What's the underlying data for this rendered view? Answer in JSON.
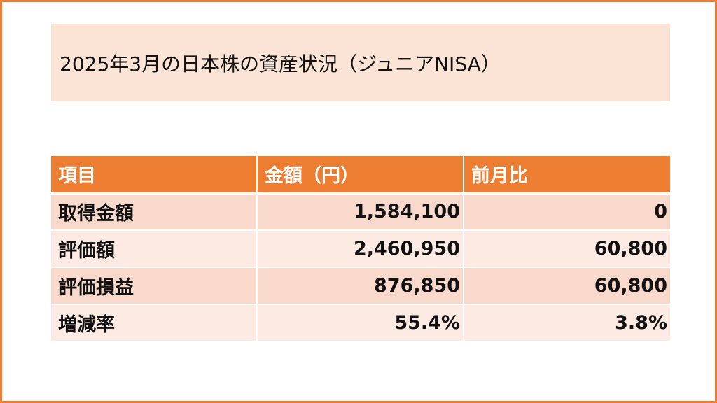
{
  "title": "2025年3月の日本株の資産状況（ジュニアNISA）",
  "table": {
    "headers": [
      "項目",
      "金額（円）",
      "前月比"
    ],
    "rows": [
      [
        "取得金額",
        "1,584,100",
        "0"
      ],
      [
        "評価額",
        "2,460,950",
        "60,800"
      ],
      [
        "評価損益",
        "876,850",
        "60,800"
      ],
      [
        "増減率",
        "55.4%",
        "3.8%"
      ]
    ]
  },
  "colors": {
    "accent": "#ED7D31",
    "title_background": "#FBE4D5",
    "row_odd": "#F9D9CC",
    "row_even": "#FCEAE3"
  }
}
